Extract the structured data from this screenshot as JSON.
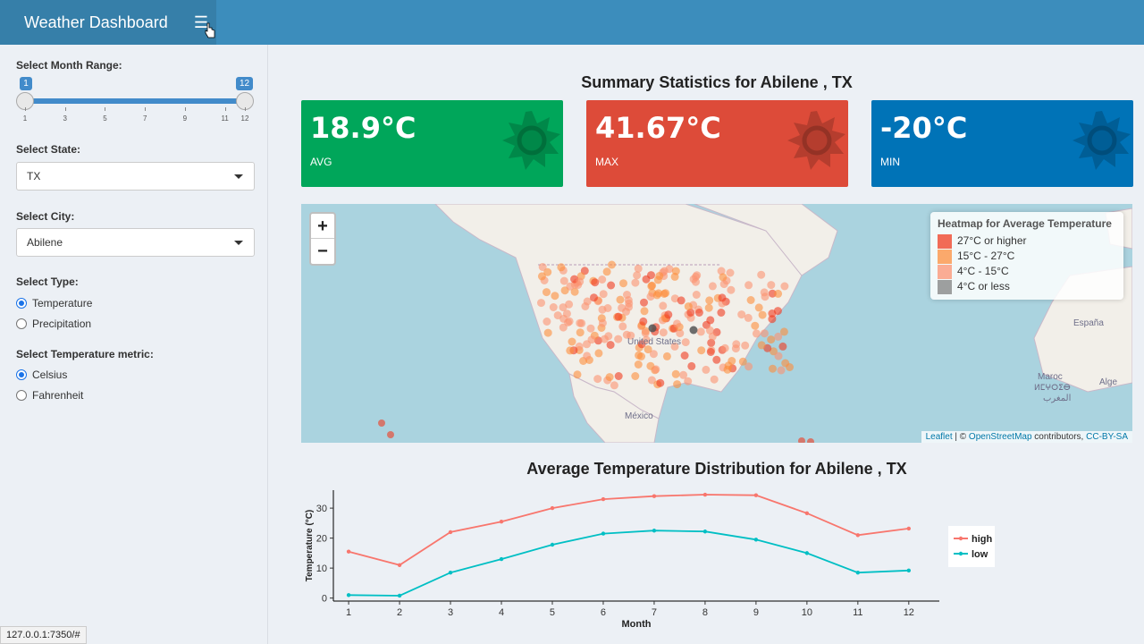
{
  "header": {
    "title": "Weather Dashboard",
    "menu_icon": "hamburger-icon"
  },
  "sidebar": {
    "month_range": {
      "label": "Select Month Range:",
      "min": 1,
      "max": 12,
      "from": 1,
      "to": 12,
      "from_label": "1",
      "to_label": "12",
      "ticks": [
        "1",
        "3",
        "5",
        "7",
        "9",
        "11",
        "12"
      ]
    },
    "state": {
      "label": "Select State:",
      "value": "TX"
    },
    "city": {
      "label": "Select City:",
      "value": "Abilene"
    },
    "type": {
      "label": "Select Type:",
      "options": [
        "Temperature",
        "Precipitation"
      ],
      "selected": "Temperature"
    },
    "metric": {
      "label": "Select Temperature metric:",
      "options": [
        "Celsius",
        "Fahrenheit"
      ],
      "selected": "Celsius"
    }
  },
  "status_url": "127.0.0.1:7350/#",
  "summary": {
    "title": "Summary Statistics for Abilene , TX",
    "boxes": [
      {
        "value": "18.9°C",
        "label": "AVG",
        "color": "#00a65a"
      },
      {
        "value": "41.67°C",
        "label": "MAX",
        "color": "#dd4b39"
      },
      {
        "value": "-20°C",
        "label": "MIN",
        "color": "#0073b7"
      }
    ]
  },
  "map": {
    "zoom_in": "+",
    "zoom_out": "−",
    "labels": {
      "us": "United States",
      "mexico": "México",
      "spain": "España",
      "morocco": "Maroc",
      "algeria": "Alge",
      "maghreb": "ⵍⵎⵖⵔⵉⴱ",
      "arab": "المغرب"
    },
    "legend": {
      "title": "Heatmap for Average Temperature",
      "items": [
        {
          "label": "27°C or higher",
          "color": "#f03b20"
        },
        {
          "label": "15°C - 27°C",
          "color": "#fd8d3c"
        },
        {
          "label": "4°C - 15°C",
          "color": "#fc9272"
        },
        {
          "label": "4°C or less",
          "color": "#808080"
        }
      ]
    },
    "attribution": {
      "leaflet": "Leaflet",
      "sep": " | © ",
      "osm": "OpenStreetMap",
      "contrib": " contributors, ",
      "license": "CC-BY-SA"
    }
  },
  "chart_title": "Average Temperature Distribution for Abilene , TX",
  "chart_data": {
    "type": "line",
    "x": [
      1,
      2,
      3,
      4,
      5,
      6,
      7,
      8,
      9,
      10,
      11,
      12
    ],
    "series": [
      {
        "name": "high",
        "color": "#f8766d",
        "values": [
          15.5,
          11,
          22,
          25.5,
          30,
          33,
          34,
          34.5,
          34.3,
          28.3,
          21,
          23.2
        ]
      },
      {
        "name": "low",
        "color": "#00bfc4",
        "values": [
          1,
          0.8,
          8.5,
          13,
          17.8,
          21.5,
          22.5,
          22.2,
          19.5,
          15,
          8.5,
          9.2
        ]
      }
    ],
    "xlabel": "Month",
    "ylabel": "Temperature (°C)",
    "yticks": [
      0,
      10,
      20,
      30
    ],
    "ylim": [
      -1,
      36
    ],
    "legend": "right"
  }
}
